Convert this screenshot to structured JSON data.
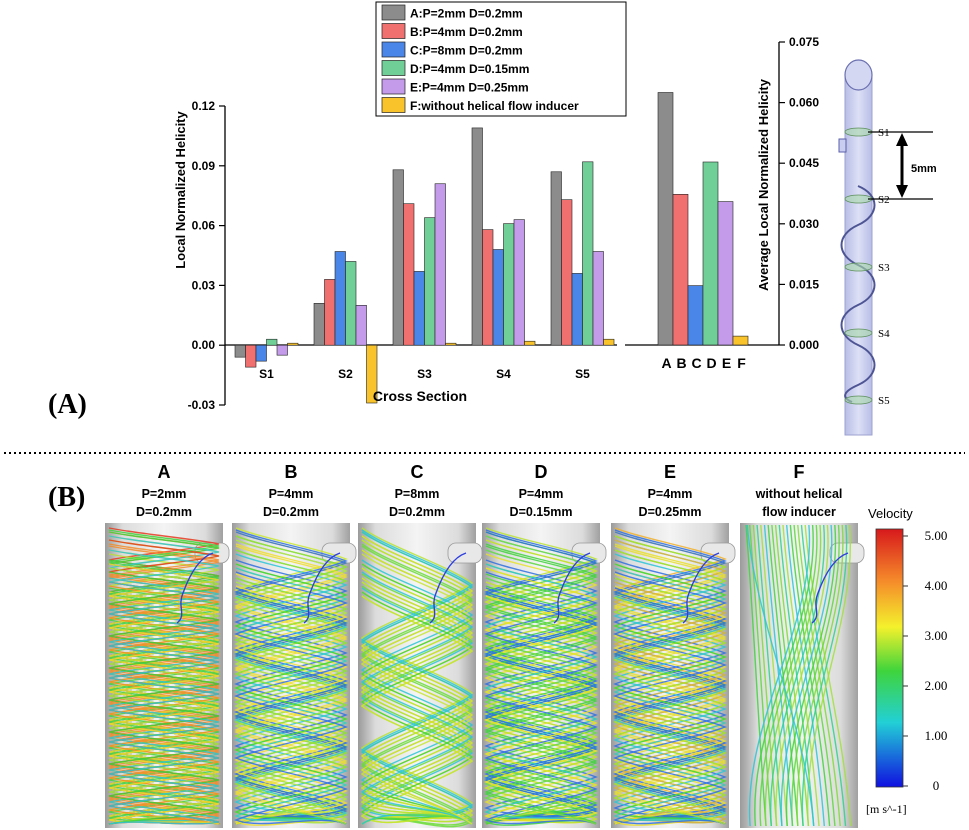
{
  "panel_labels": {
    "a": "(A)",
    "b": "(B)"
  },
  "colors": {
    "A": "#8c8c8c",
    "B": "#f07070",
    "C": "#4a86e8",
    "D": "#6fcf97",
    "E": "#c39bea",
    "F": "#f8c32b"
  },
  "legend": [
    {
      "key": "A",
      "label": "A:P=2mm D=0.2mm"
    },
    {
      "key": "B",
      "label": "B:P=4mm D=0.2mm"
    },
    {
      "key": "C",
      "label": "C:P=8mm D=0.2mm"
    },
    {
      "key": "D",
      "label": "D:P=4mm D=0.15mm"
    },
    {
      "key": "E",
      "label": "E:P=4mm D=0.25mm"
    },
    {
      "key": "F",
      "label": "F:without helical flow inducer"
    }
  ],
  "chart_data": [
    {
      "type": "bar",
      "title": "",
      "xlabel": "Cross Section",
      "ylabel": "Local Normalized Helicity",
      "ylim": [
        -0.03,
        0.12
      ],
      "yticks": [
        "-0.03",
        "0.00",
        "0.03",
        "0.06",
        "0.09",
        "0.12"
      ],
      "yticks_values": [
        -0.03,
        0.0,
        0.03,
        0.06,
        0.09,
        0.12
      ],
      "categories": [
        "S1",
        "S2",
        "S3",
        "S4",
        "S5"
      ],
      "series": [
        {
          "name": "A",
          "values": [
            -0.006,
            0.021,
            0.088,
            0.109,
            0.087
          ]
        },
        {
          "name": "B",
          "values": [
            -0.011,
            0.033,
            0.071,
            0.058,
            0.073
          ]
        },
        {
          "name": "C",
          "values": [
            -0.008,
            0.047,
            0.037,
            0.048,
            0.036
          ]
        },
        {
          "name": "D",
          "values": [
            0.003,
            0.042,
            0.064,
            0.061,
            0.092
          ]
        },
        {
          "name": "E",
          "values": [
            -0.005,
            0.02,
            0.081,
            0.063,
            0.047
          ]
        },
        {
          "name": "F",
          "values": [
            0.001,
            -0.029,
            0.001,
            0.002,
            0.003
          ]
        }
      ]
    },
    {
      "type": "bar",
      "title": "",
      "xlabel": "",
      "ylabel": "Average Local Normalized Helicity",
      "ylim": [
        0,
        0.075
      ],
      "yticks": [
        "0.000",
        "0.015",
        "0.030",
        "0.045",
        "0.060",
        "0.075"
      ],
      "yticks_values": [
        0.0,
        0.015,
        0.03,
        0.045,
        0.06,
        0.075
      ],
      "categories": [
        "A",
        "B",
        "C",
        "D",
        "E",
        "F"
      ],
      "values": [
        0.0625,
        0.0373,
        0.0147,
        0.0453,
        0.0355,
        0.0022
      ]
    }
  ],
  "schematic": {
    "sections": [
      "S1",
      "S2",
      "S3",
      "S4",
      "S5"
    ],
    "spacing_label": "5mm"
  },
  "panel_b": {
    "cases": [
      {
        "letter": "A",
        "line1": "P=2mm",
        "line2": "D=0.2mm"
      },
      {
        "letter": "B",
        "line1": "P=4mm",
        "line2": "D=0.2mm"
      },
      {
        "letter": "C",
        "line1": "P=8mm",
        "line2": "D=0.2mm"
      },
      {
        "letter": "D",
        "line1": "P=4mm",
        "line2": "D=0.15mm"
      },
      {
        "letter": "E",
        "line1": "P=4mm",
        "line2": "D=0.25mm"
      },
      {
        "letter": "F",
        "line1": "without helical",
        "line2": "flow inducer"
      }
    ],
    "colorbar": {
      "title": "Velocity",
      "ticks": [
        "5.00",
        "4.00",
        "3.00",
        "2.00",
        "1.00",
        "0"
      ],
      "unit": "[m s^-1]"
    }
  }
}
